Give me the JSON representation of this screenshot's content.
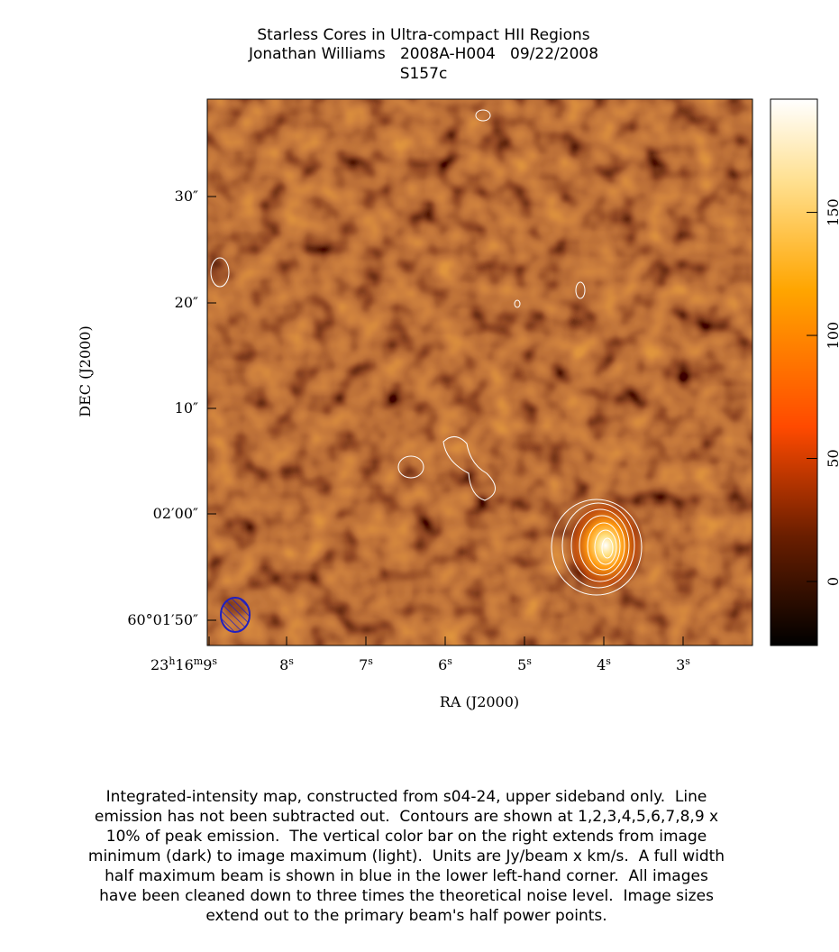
{
  "header": {
    "title": "Starless Cores in Ultra-compact HII Regions",
    "subtitle": "Jonathan Williams   2008A-H004   09/22/2008",
    "source": "S157c"
  },
  "axes": {
    "x_label": "RA (J2000)",
    "y_label": "DEC (J2000)",
    "x_ticks": [
      [
        "23",
        "h",
        "16",
        "m",
        "9",
        "s"
      ],
      [
        "8",
        "s"
      ],
      [
        "7",
        "s"
      ],
      [
        "6",
        "s"
      ],
      [
        "5",
        "s"
      ],
      [
        "4",
        "s"
      ],
      [
        "3",
        "s"
      ]
    ],
    "y_ticks": [
      "30″",
      "20″",
      "10″",
      "02′00″",
      "60°01′50″"
    ]
  },
  "colorbar": {
    "range": [
      -26,
      196
    ],
    "ticks": [
      0,
      50,
      100,
      150
    ]
  },
  "caption": [
    "Integrated-intensity map, constructed from s04-24, upper sideband only.  Line",
    "emission has not been subtracted out.  Contours are shown at 1,2,3,4,5,6,7,8,9 x",
    "10% of peak emission.  The vertical color bar on the right extends from image",
    "minimum (dark) to image maximum (light).  Units are Jy/beam x km/s.  A full width",
    "half maximum beam is shown in blue in the lower left-hand corner.  All images",
    "have been cleaned down to three times the theoretical noise level.  Image sizes",
    "extend out to the primary beam's half power points."
  ]
}
